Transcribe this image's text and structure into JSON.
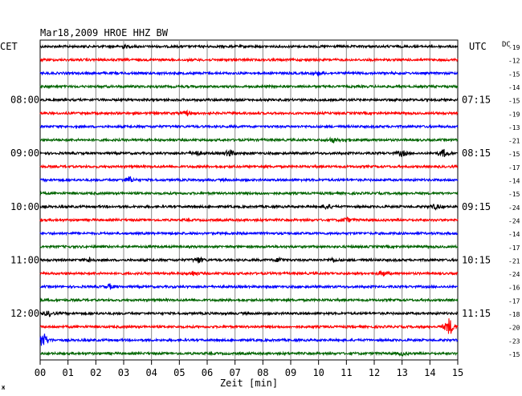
{
  "chart_data": {
    "type": "line",
    "title": "Mar18,2009   HROE HHZ BW",
    "left_axis_label": "CET",
    "right_axis_label": "UTC",
    "dc_label": "DC",
    "xlabel": "Zeit [min]",
    "xlim": [
      0,
      15
    ],
    "x_ticks": [
      "00",
      "01",
      "02",
      "03",
      "04",
      "05",
      "06",
      "07",
      "08",
      "09",
      "10",
      "11",
      "12",
      "13",
      "14",
      "15"
    ],
    "left_hour_labels": [
      {
        "row": 4,
        "text": "08:00"
      },
      {
        "row": 8,
        "text": "09:00"
      },
      {
        "row": 12,
        "text": "10:00"
      },
      {
        "row": 16,
        "text": "11:00"
      },
      {
        "row": 20,
        "text": "12:00"
      }
    ],
    "right_hour_labels": [
      {
        "row": 4,
        "text": "07:15"
      },
      {
        "row": 8,
        "text": "08:15"
      },
      {
        "row": 12,
        "text": "09:15"
      },
      {
        "row": 16,
        "text": "10:15"
      },
      {
        "row": 20,
        "text": "11:15"
      }
    ],
    "trace_colors": [
      "#000000",
      "#ff0000",
      "#0000ff",
      "#006400"
    ],
    "dc_offsets": [
      -19,
      -12,
      -15,
      -14,
      -15,
      -19,
      -13,
      -21,
      -15,
      -17,
      -14,
      -15,
      -24,
      -24,
      -14,
      -17,
      -21,
      -24,
      -16,
      -17,
      -18,
      -20,
      -23,
      -15
    ],
    "events": [
      {
        "row": 0,
        "min": 3.0,
        "amp": 2.0
      },
      {
        "row": 2,
        "min": 10.0,
        "amp": 2.0
      },
      {
        "row": 5,
        "min": 5.3,
        "amp": 3.0
      },
      {
        "row": 7,
        "min": 10.5,
        "amp": 3.0
      },
      {
        "row": 7,
        "min": 11.0,
        "amp": 2.0
      },
      {
        "row": 8,
        "min": 6.8,
        "amp": 5.0
      },
      {
        "row": 8,
        "min": 5.6,
        "amp": 4.0
      },
      {
        "row": 8,
        "min": 13.0,
        "amp": 4.0
      },
      {
        "row": 8,
        "min": 14.5,
        "amp": 5.0
      },
      {
        "row": 10,
        "min": 3.2,
        "amp": 4.0
      },
      {
        "row": 12,
        "min": 10.3,
        "amp": 4.0
      },
      {
        "row": 12,
        "min": 14.2,
        "amp": 3.0
      },
      {
        "row": 13,
        "min": 11.0,
        "amp": 3.0
      },
      {
        "row": 16,
        "min": 1.8,
        "amp": 3.0
      },
      {
        "row": 16,
        "min": 5.7,
        "amp": 4.0
      },
      {
        "row": 16,
        "min": 8.6,
        "amp": 3.0
      },
      {
        "row": 16,
        "min": 10.5,
        "amp": 2.0
      },
      {
        "row": 17,
        "min": 5.5,
        "amp": 3.0
      },
      {
        "row": 17,
        "min": 12.3,
        "amp": 4.0
      },
      {
        "row": 18,
        "min": 2.5,
        "amp": 3.0
      },
      {
        "row": 20,
        "min": 0.3,
        "amp": 3.0
      },
      {
        "row": 21,
        "min": 14.7,
        "amp": 12.0
      },
      {
        "row": 22,
        "min": 0.1,
        "amp": 12.0
      },
      {
        "row": 23,
        "min": 13.0,
        "amp": 2.0
      }
    ],
    "footer_mark": "Ж"
  }
}
